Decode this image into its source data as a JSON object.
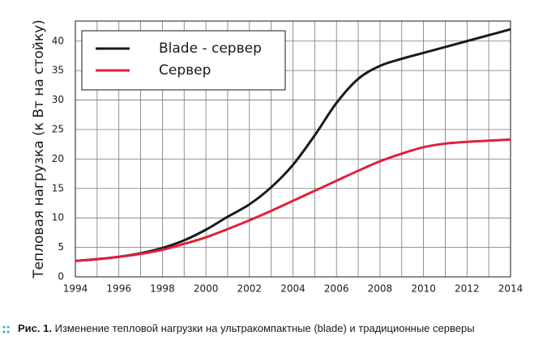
{
  "chart_data": {
    "type": "line",
    "y_label": "Тепловая нагрузка (к Вт на стойку)",
    "x": [
      1994,
      1995,
      1996,
      1997,
      1998,
      1999,
      2000,
      2001,
      2002,
      2003,
      2004,
      2005,
      2006,
      2007,
      2008,
      2009,
      2010,
      2011,
      2012,
      2013,
      2014
    ],
    "series": [
      {
        "name": "Blade - сервер",
        "color": "#1a1a1a",
        "values": [
          2.7,
          3.0,
          3.4,
          4.0,
          4.9,
          6.2,
          8.0,
          10.2,
          12.3,
          15.2,
          19.0,
          24.0,
          29.5,
          33.6,
          35.8,
          37.0,
          38.0,
          39.0,
          40.0,
          41.0,
          42.0
        ]
      },
      {
        "name": "Сервер",
        "color": "#e0203a",
        "values": [
          2.7,
          3.0,
          3.4,
          3.9,
          4.6,
          5.6,
          6.7,
          8.1,
          9.6,
          11.2,
          12.9,
          14.6,
          16.3,
          18.0,
          19.6,
          20.9,
          22.0,
          22.6,
          22.9,
          23.1,
          23.3
        ]
      }
    ],
    "xlim": [
      1994,
      2014
    ],
    "xticks": [
      1994,
      1996,
      1998,
      2000,
      2002,
      2004,
      2006,
      2008,
      2010,
      2012,
      2014
    ],
    "x_minor_ticks": [
      1995,
      1997,
      1999,
      2001,
      2003,
      2005,
      2007,
      2009,
      2011,
      2013
    ],
    "ylim": [
      0,
      43.4
    ],
    "yticks": [
      0,
      5,
      10,
      15,
      20,
      25,
      30,
      35,
      40
    ],
    "grid": true,
    "legend": "upper left",
    "caption_label": "Рис. 1.",
    "caption_text": "Изменение тепловой нагрузки на ультракомпактные (blade) и традиционные серверы"
  }
}
